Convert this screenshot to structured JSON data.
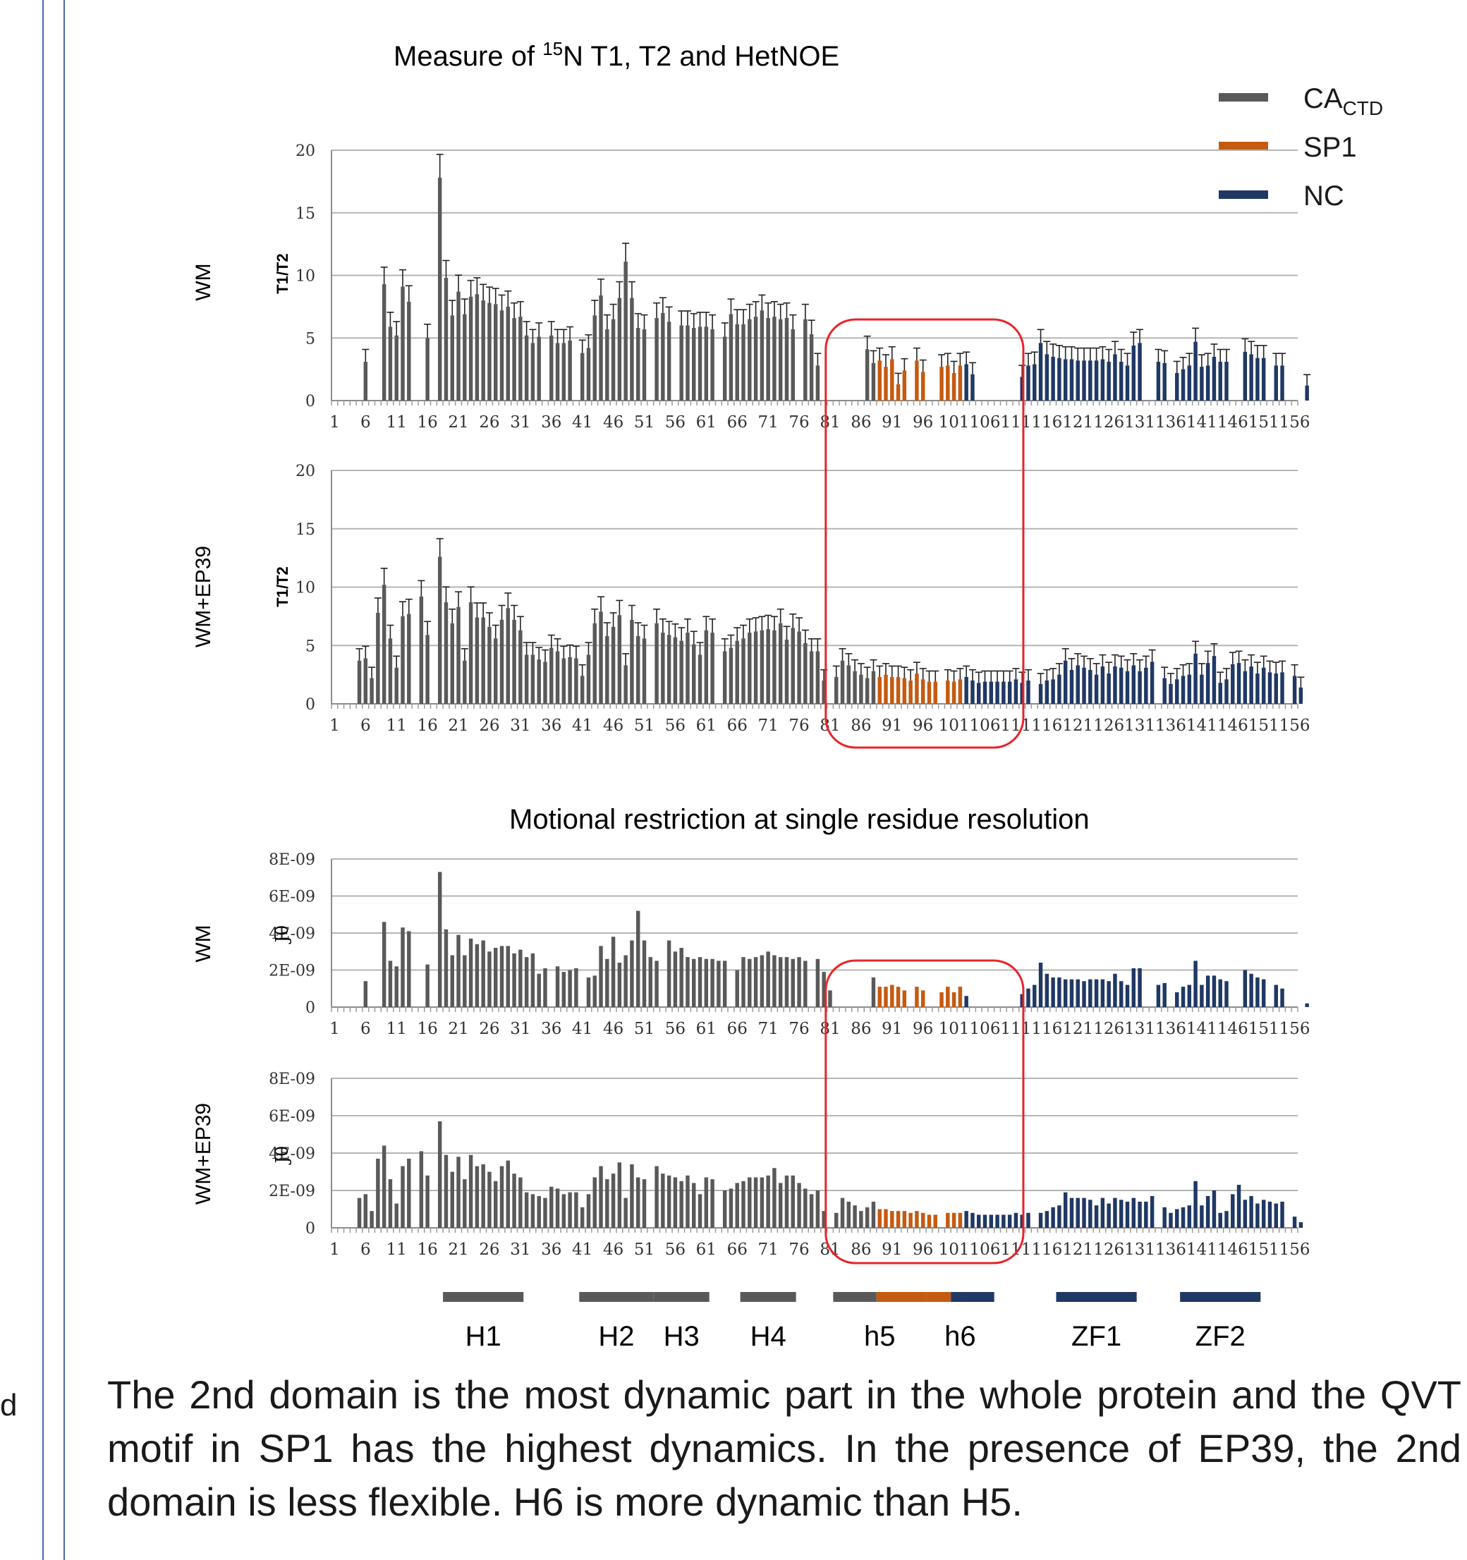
{
  "titles": {
    "top": {
      "prefix": "Measure of ",
      "sup": "15",
      "suffix": "N T1, T2 and HetNOE"
    },
    "bottom": "Motional restriction at single residue resolution"
  },
  "legend": [
    {
      "label": "CA",
      "sub": "CTD",
      "color": "#595959"
    },
    {
      "label": "SP1",
      "sub": "",
      "color": "#c55a11"
    },
    {
      "label": "NC",
      "sub": "",
      "color": "#203864"
    }
  ],
  "colors": {
    "ca": "#595959",
    "sp1": "#c55a11",
    "nc": "#203864",
    "highlight": "#e8242a",
    "grid": "#b5b5b5",
    "frame": "#4a66b0"
  },
  "segments": {
    "ca_end": 88,
    "sp1_end": 102
  },
  "chart_data": [
    {
      "type": "bar",
      "row_label": "WM",
      "ylabel": "T1/T2",
      "ylim": [
        0,
        20
      ],
      "yticks": [
        0,
        5,
        10,
        15,
        20
      ],
      "ytick_labels": [
        "0",
        "5",
        "10",
        "15",
        "20"
      ],
      "x_start": 1,
      "xtick_labels": [
        "1",
        "6",
        "11",
        "16",
        "21",
        "26",
        "31",
        "36",
        "41",
        "46",
        "51",
        "56",
        "61",
        "66",
        "71",
        "76",
        "81",
        "86",
        "91",
        "96",
        "101",
        "106",
        "111",
        "116",
        "121",
        "126",
        "131",
        "136",
        "141",
        "146",
        "151",
        "156"
      ],
      "error_bars": true,
      "values": [
        0,
        0,
        0,
        0,
        0,
        3.1,
        0,
        0,
        9.3,
        5.9,
        5.2,
        9.1,
        7.9,
        0,
        0,
        5,
        0,
        17.8,
        9.8,
        6.8,
        8.7,
        6.9,
        8.3,
        8.5,
        8,
        7.8,
        7.7,
        7.2,
        7.5,
        6.6,
        6.7,
        5.2,
        4.6,
        5.1,
        0,
        5.2,
        4.6,
        4.6,
        4.8,
        0,
        3.8,
        4.2,
        6.8,
        8.4,
        5.7,
        6.5,
        8.2,
        11.1,
        8.2,
        5.8,
        5.7,
        0,
        6.6,
        7,
        6.3,
        0,
        6,
        6,
        5.8,
        5.9,
        5.9,
        5.7,
        0,
        5.1,
        6.9,
        6.1,
        6.1,
        6.5,
        6.7,
        7.2,
        6.6,
        6.7,
        6.5,
        6.6,
        5.7,
        0,
        6.5,
        5.3,
        2.8,
        0,
        0,
        0,
        0,
        0,
        0,
        0,
        4.1,
        3,
        3.2,
        2.7,
        3.3,
        1.3,
        2.4,
        0,
        3.2,
        2.3,
        0,
        0,
        2.7,
        2.8,
        2.2,
        2.8,
        2.9,
        2.1,
        0,
        0,
        0,
        0,
        0,
        0,
        0,
        1.9,
        2.8,
        2.9,
        4.6,
        3.7,
        3.5,
        3.4,
        3.3,
        3.3,
        3.2,
        3.2,
        3.2,
        3.2,
        3.3,
        3.1,
        3.7,
        3.1,
        2.8,
        4.4,
        4.6,
        0,
        0,
        3.1,
        3,
        0,
        2.2,
        2.5,
        2.8,
        4.7,
        2.7,
        2.8,
        3.5,
        3.1,
        3.1,
        0,
        0,
        3.9,
        3.7,
        3.4,
        3.4,
        0,
        2.8,
        2.8,
        0,
        0,
        0,
        1.2
      ]
    },
    {
      "type": "bar",
      "row_label": "WM+EP39",
      "ylabel": "T1/T2",
      "ylim": [
        0,
        20
      ],
      "yticks": [
        0,
        5,
        10,
        15,
        20
      ],
      "ytick_labels": [
        "0",
        "5",
        "10",
        "15",
        "20"
      ],
      "x_start": 1,
      "xtick_labels": [
        "1",
        "6",
        "11",
        "16",
        "21",
        "26",
        "31",
        "36",
        "41",
        "46",
        "51",
        "56",
        "61",
        "66",
        "71",
        "76",
        "81",
        "86",
        "91",
        "96",
        "101",
        "106",
        "111",
        "116",
        "121",
        "126",
        "131",
        "136",
        "141",
        "146",
        "151",
        "156"
      ],
      "error_bars": true,
      "values": [
        0,
        0,
        0,
        0,
        3.7,
        3.9,
        2.2,
        7.8,
        10.2,
        5.6,
        3.1,
        7.5,
        7.7,
        0,
        9.2,
        5.9,
        0,
        12.6,
        8.7,
        6.9,
        8.3,
        3.7,
        8.7,
        7.4,
        7.4,
        6.6,
        5.6,
        7.2,
        8.2,
        7.2,
        6.3,
        4.2,
        4.2,
        3.8,
        3.6,
        4.8,
        4.5,
        3.9,
        4,
        3.9,
        2.4,
        4.2,
        6.9,
        7.9,
        5.8,
        6.6,
        7.6,
        3.3,
        7.2,
        5.8,
        5.6,
        0,
        6.9,
        6.1,
        5.9,
        5.7,
        5.4,
        6.1,
        5.1,
        4.2,
        6.3,
        6.1,
        0,
        4.5,
        4.8,
        5.4,
        5.6,
        6.1,
        6.2,
        6.3,
        6.4,
        6.3,
        6.9,
        5.5,
        6.5,
        6.2,
        5.2,
        4.5,
        4.5,
        2,
        0,
        2.3,
        3.7,
        3.3,
        2.8,
        2.5,
        2.2,
        2.8,
        2.3,
        2.5,
        2.3,
        2.3,
        2.2,
        2,
        2.6,
        2.1,
        1.9,
        1.9,
        0,
        2,
        1.9,
        2.1,
        2.3,
        2,
        1.8,
        1.9,
        1.9,
        1.9,
        1.9,
        1.9,
        2.1,
        1.8,
        2,
        0,
        1.7,
        2,
        2.1,
        2.5,
        3.7,
        2.9,
        3.3,
        3.1,
        2.9,
        2.5,
        3.2,
        2.6,
        3.2,
        3.1,
        2.8,
        3.3,
        2.8,
        3.1,
        3.6,
        0,
        2.2,
        1.7,
        2.1,
        2.4,
        2.5,
        4.3,
        2.5,
        3.5,
        4.1,
        1.8,
        2.1,
        3.4,
        3.5,
        2.8,
        3.2,
        2.6,
        3.1,
        2.7,
        2.6,
        2.7,
        0,
        2.4,
        1.4
      ]
    },
    {
      "type": "bar",
      "row_label": "WM",
      "ylabel": "J0",
      "ylim": [
        0,
        8e-09
      ],
      "yticks": [
        0,
        2e-09,
        4e-09,
        6e-09,
        8e-09
      ],
      "ytick_labels": [
        "0",
        "2E-09",
        "4E-09",
        "6E-09",
        "8E-09"
      ],
      "x_start": 1,
      "xtick_labels": [
        "1",
        "6",
        "11",
        "16",
        "21",
        "26",
        "31",
        "36",
        "41",
        "46",
        "51",
        "56",
        "61",
        "66",
        "71",
        "76",
        "81",
        "86",
        "91",
        "96",
        "101",
        "106",
        "111",
        "116",
        "121",
        "126",
        "131",
        "136",
        "141",
        "146",
        "151",
        "156"
      ],
      "error_bars": false,
      "values": [
        0,
        0,
        0,
        0,
        0,
        1.4e-09,
        0,
        0,
        4.6e-09,
        2.5e-09,
        2.2e-09,
        4.3e-09,
        4.1e-09,
        0,
        0,
        2.3e-09,
        0,
        7.3e-09,
        4.2e-09,
        2.8e-09,
        3.9e-09,
        2.8e-09,
        3.7e-09,
        3.4e-09,
        3.6e-09,
        3e-09,
        3.2e-09,
        3.3e-09,
        3.3e-09,
        2.9e-09,
        3.1e-09,
        2.7e-09,
        2.9e-09,
        1.8e-09,
        2.1e-09,
        0,
        2.2e-09,
        1.9e-09,
        2e-09,
        2.1e-09,
        0,
        1.6e-09,
        1.7e-09,
        3.3e-09,
        2.6e-09,
        3.8e-09,
        2.4e-09,
        2.8e-09,
        3.6e-09,
        5.2e-09,
        3.6e-09,
        2.7e-09,
        2.5e-09,
        0,
        3.6e-09,
        3e-09,
        3.2e-09,
        2.7e-09,
        2.6e-09,
        2.7e-09,
        2.6e-09,
        2.6e-09,
        2.5e-09,
        2.5e-09,
        0,
        2e-09,
        2.7e-09,
        2.6e-09,
        2.7e-09,
        2.8e-09,
        3e-09,
        2.8e-09,
        2.7e-09,
        2.7e-09,
        2.6e-09,
        2.7e-09,
        2.5e-09,
        0,
        2.6e-09,
        1.9e-09,
        9e-10,
        0,
        0,
        0,
        0,
        0,
        0,
        1.6e-09,
        1.1e-09,
        1.1e-09,
        1.2e-09,
        1.1e-09,
        9e-10,
        0,
        1.1e-09,
        9e-10,
        0,
        0,
        8e-10,
        1.1e-09,
        8e-10,
        1.1e-09,
        6e-10,
        0,
        0,
        0,
        0,
        0,
        0,
        0,
        0,
        7e-10,
        1e-09,
        1.2e-09,
        2.4e-09,
        1.8e-09,
        1.6e-09,
        1.6e-09,
        1.5e-09,
        1.5e-09,
        1.5e-09,
        1.4e-09,
        1.5e-09,
        1.5e-09,
        1.5e-09,
        1.4e-09,
        1.8e-09,
        1.4e-09,
        1.2e-09,
        2.1e-09,
        2.1e-09,
        0,
        0,
        1.2e-09,
        1.3e-09,
        0,
        8e-10,
        1.1e-09,
        1.2e-09,
        2.5e-09,
        1.2e-09,
        1.7e-09,
        1.7e-09,
        1.5e-09,
        1.4e-09,
        0,
        0,
        2e-09,
        1.8e-09,
        1.6e-09,
        1.5e-09,
        0,
        1.2e-09,
        1e-09,
        0,
        0,
        0,
        2e-10
      ]
    },
    {
      "type": "bar",
      "row_label": "WM+EP39",
      "ylabel": "J0",
      "ylim": [
        0,
        8e-09
      ],
      "yticks": [
        0,
        2e-09,
        4e-09,
        6e-09,
        8e-09
      ],
      "ytick_labels": [
        "0",
        "2E-09",
        "4E-09",
        "6E-09",
        "8E-09"
      ],
      "x_start": 1,
      "xtick_labels": [
        "1",
        "6",
        "11",
        "16",
        "21",
        "26",
        "31",
        "36",
        "41",
        "46",
        "51",
        "56",
        "61",
        "66",
        "71",
        "76",
        "81",
        "86",
        "91",
        "96",
        "101",
        "106",
        "111",
        "116",
        "121",
        "126",
        "131",
        "136",
        "141",
        "146",
        "151",
        "156"
      ],
      "error_bars": false,
      "values": [
        0,
        0,
        0,
        0,
        1.6e-09,
        1.8e-09,
        9e-10,
        3.7e-09,
        4.4e-09,
        2.6e-09,
        1.3e-09,
        3.3e-09,
        3.7e-09,
        0,
        4.1e-09,
        2.8e-09,
        0,
        5.7e-09,
        3.9e-09,
        3e-09,
        3.8e-09,
        2.6e-09,
        3.9e-09,
        3.3e-09,
        3.4e-09,
        3e-09,
        2.5e-09,
        3.3e-09,
        3.6e-09,
        2.9e-09,
        2.7e-09,
        1.9e-09,
        1.8e-09,
        1.7e-09,
        1.6e-09,
        2.2e-09,
        2.1e-09,
        1.8e-09,
        1.9e-09,
        1.9e-09,
        1.1e-09,
        1.8e-09,
        2.7e-09,
        3.3e-09,
        2.6e-09,
        2.9e-09,
        3.5e-09,
        1.6e-09,
        3.4e-09,
        2.7e-09,
        2.6e-09,
        0,
        3.3e-09,
        2.9e-09,
        2.8e-09,
        2.7e-09,
        2.5e-09,
        2.8e-09,
        2.4e-09,
        1.8e-09,
        2.7e-09,
        2.6e-09,
        0,
        2e-09,
        2.1e-09,
        2.4e-09,
        2.5e-09,
        2.7e-09,
        2.7e-09,
        2.7e-09,
        2.8e-09,
        3.2e-09,
        2.4e-09,
        2.8e-09,
        2.8e-09,
        2.4e-09,
        2.1e-09,
        1.8e-09,
        2e-09,
        9e-10,
        0,
        8e-10,
        1.6e-09,
        1.4e-09,
        1.2e-09,
        9e-10,
        1.1e-09,
        1.4e-09,
        1e-09,
        1e-09,
        9e-10,
        9e-10,
        9e-10,
        8e-10,
        9e-10,
        8e-10,
        7e-10,
        7e-10,
        0,
        8e-10,
        8e-10,
        8e-10,
        9e-10,
        8e-10,
        7e-10,
        7e-10,
        7e-10,
        7e-10,
        7e-10,
        7e-10,
        8e-10,
        7e-10,
        8e-10,
        0,
        8e-10,
        9e-10,
        1.1e-09,
        1.2e-09,
        1.9e-09,
        1.6e-09,
        1.6e-09,
        1.6e-09,
        1.5e-09,
        1.2e-09,
        1.6e-09,
        1.3e-09,
        1.6e-09,
        1.5e-09,
        1.4e-09,
        1.6e-09,
        1.4e-09,
        1.4e-09,
        1.7e-09,
        0,
        1.1e-09,
        8e-10,
        1e-09,
        1.1e-09,
        1.2e-09,
        2.5e-09,
        1.2e-09,
        1.7e-09,
        2e-09,
        8e-10,
        9e-10,
        1.8e-09,
        2.3e-09,
        1.5e-09,
        1.7e-09,
        1.3e-09,
        1.5e-09,
        1.4e-09,
        1.3e-09,
        1.4e-09,
        0,
        6e-10,
        3e-10
      ]
    }
  ],
  "highlights": [
    {
      "from": 81,
      "to": 112
    },
    {
      "from": 81,
      "to": 112
    }
  ],
  "domains": [
    {
      "label": "H1",
      "parts": [
        {
          "from": 19,
          "to": 31,
          "color": "ca"
        }
      ]
    },
    {
      "label": "H2",
      "parts": [
        {
          "from": 41,
          "to": 52,
          "color": "ca"
        }
      ]
    },
    {
      "label": "H3",
      "parts": [
        {
          "from": 53,
          "to": 61,
          "color": "ca"
        }
      ]
    },
    {
      "label": "H4",
      "parts": [
        {
          "from": 67,
          "to": 75,
          "color": "ca"
        }
      ]
    },
    {
      "label": "h5",
      "parts": [
        {
          "from": 82,
          "to": 88,
          "color": "ca"
        },
        {
          "from": 89,
          "to": 96,
          "color": "sp1"
        }
      ]
    },
    {
      "label": "h6",
      "parts": [
        {
          "from": 97,
          "to": 100,
          "color": "sp1"
        },
        {
          "from": 101,
          "to": 107,
          "color": "nc"
        }
      ]
    },
    {
      "label": "ZF1",
      "parts": [
        {
          "from": 118,
          "to": 130,
          "color": "nc"
        }
      ]
    },
    {
      "label": "ZF2",
      "parts": [
        {
          "from": 138,
          "to": 150,
          "color": "nc"
        }
      ]
    }
  ],
  "caption": "The 2nd domain is the most dynamic part in the whole protein and the QVT motif in SP1 has the highest dynamics. In the presence of EP39, the 2nd domain is less flexible. H6 is more dynamic than H5.",
  "edge_text": "d"
}
